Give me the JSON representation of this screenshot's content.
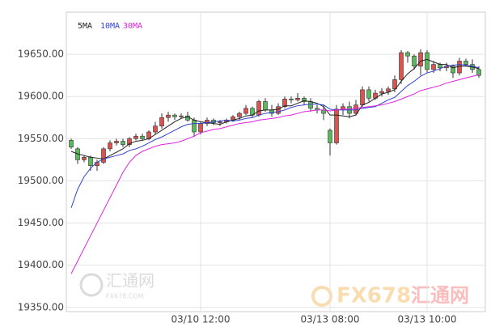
{
  "chart_data": {
    "type": "candlestick",
    "categories": [
      null,
      null,
      null,
      null,
      null,
      null,
      null,
      null,
      null,
      null,
      null,
      null,
      null,
      null,
      null,
      null,
      null,
      null,
      null,
      null,
      "03/10 12:00",
      null,
      null,
      null,
      null,
      null,
      null,
      null,
      null,
      null,
      null,
      null,
      null,
      null,
      null,
      null,
      null,
      null,
      null,
      null,
      "03/13 08:00",
      null,
      null,
      null,
      null,
      null,
      null,
      null,
      null,
      null,
      null,
      null,
      null,
      null,
      null,
      "03/13 10:00",
      null,
      null,
      null,
      null,
      null,
      null,
      null,
      null
    ],
    "open": [
      19548,
      19538,
      19525,
      19528,
      19518,
      19522,
      19538,
      19545,
      19547,
      19543,
      19550,
      19553,
      19550,
      19558,
      19565,
      19575,
      19578,
      19576,
      19577,
      19572,
      19558,
      19568,
      19572,
      19569,
      19570,
      19572,
      19576,
      19580,
      19586,
      19578,
      19594,
      19584,
      19580,
      19588,
      19597,
      19596,
      19598,
      19594,
      19586,
      19584,
      19560,
      19545,
      19585,
      19588,
      19580,
      19590,
      19608,
      19598,
      19604,
      19606,
      19609,
      19620,
      19652,
      19648,
      19636,
      19652,
      19632,
      19638,
      19634,
      19636,
      19628,
      19642,
      19638,
      19632
    ],
    "high": [
      19550,
      19540,
      19530,
      19530,
      19525,
      19540,
      19548,
      19550,
      19550,
      19552,
      19556,
      19556,
      19560,
      19570,
      19580,
      19582,
      19580,
      19580,
      19582,
      19575,
      19570,
      19575,
      19574,
      19572,
      19574,
      19578,
      19582,
      19590,
      19588,
      19596,
      19598,
      19590,
      19592,
      19600,
      19600,
      19604,
      19600,
      19598,
      19590,
      19590,
      19562,
      19590,
      19592,
      19594,
      19596,
      19612,
      19612,
      19608,
      19610,
      19612,
      19625,
      19655,
      19654,
      19650,
      19656,
      19655,
      19642,
      19640,
      19640,
      19638,
      19646,
      19645,
      19644,
      19636
    ],
    "low": [
      19538,
      19520,
      19522,
      19512,
      19512,
      19520,
      19535,
      19542,
      19540,
      19540,
      19548,
      19548,
      19548,
      19555,
      19562,
      19570,
      19572,
      19574,
      19570,
      19552,
      19555,
      19565,
      19566,
      19565,
      19568,
      19570,
      19572,
      19578,
      19575,
      19576,
      19582,
      19576,
      19578,
      19586,
      19592,
      19594,
      19590,
      19582,
      19580,
      19572,
      19530,
      19543,
      19578,
      19574,
      19578,
      19588,
      19594,
      19596,
      19600,
      19602,
      19605,
      19615,
      19640,
      19632,
      19625,
      19628,
      19628,
      19630,
      19630,
      19622,
      19625,
      19636,
      19628,
      19622
    ],
    "close": [
      19540,
      19525,
      19528,
      19518,
      19522,
      19538,
      19545,
      19547,
      19543,
      19550,
      19553,
      19550,
      19558,
      19565,
      19575,
      19578,
      19576,
      19577,
      19572,
      19558,
      19568,
      19572,
      19569,
      19570,
      19572,
      19576,
      19580,
      19586,
      19578,
      19594,
      19584,
      19580,
      19588,
      19597,
      19596,
      19598,
      19594,
      19586,
      19584,
      19580,
      19545,
      19585,
      19588,
      19580,
      19590,
      19608,
      19598,
      19604,
      19606,
      19609,
      19620,
      19652,
      19648,
      19636,
      19652,
      19632,
      19638,
      19634,
      19636,
      19628,
      19642,
      19638,
      19632,
      19625
    ],
    "up_color": "#d9534f",
    "down_color": "#5cb85c",
    "lines": [
      {
        "name": "5MA",
        "color": "#222222",
        "values": [
          19535,
          19532,
          19530,
          19528,
          19527,
          19526,
          19530,
          19534,
          19538,
          19544,
          19547,
          19548,
          19550,
          19555,
          19560,
          19565,
          19570,
          19574,
          19576,
          19572,
          19570,
          19569,
          19568,
          19567,
          19570,
          19572,
          19574,
          19577,
          19578,
          19583,
          19584,
          19584,
          19585,
          19589,
          19589,
          19592,
          19595,
          19594,
          19592,
          19588,
          19578,
          19578,
          19577,
          19576,
          19578,
          19590,
          19593,
          19598,
          19603,
          19605,
          19608,
          19618,
          19627,
          19633,
          19642,
          19644,
          19641,
          19638,
          19638,
          19634,
          19636,
          19636,
          19635,
          19633
        ]
      },
      {
        "name": "10MA",
        "color": "#3344cc",
        "values": [
          19468,
          19490,
          19505,
          19515,
          19522,
          19526,
          19528,
          19530,
          19532,
          19536,
          19538,
          19541,
          19545,
          19549,
          19552,
          19556,
          19560,
          19564,
          19567,
          19568,
          19568,
          19569,
          19570,
          19571,
          19572,
          19571,
          19572,
          19574,
          19575,
          19578,
          19580,
          19581,
          19582,
          19584,
          19587,
          19589,
          19590,
          19591,
          19591,
          19590,
          19585,
          19584,
          19584,
          19584,
          19584,
          19586,
          19587,
          19588,
          19592,
          19596,
          19599,
          19606,
          19613,
          19618,
          19624,
          19628,
          19630,
          19633,
          19636,
          19637,
          19638,
          19637,
          19636,
          19634
        ]
      },
      {
        "name": "30MA",
        "color": "#dd22dd",
        "values": [
          19390,
          19405,
          19420,
          19435,
          19450,
          19465,
          19480,
          19495,
          19510,
          19522,
          19530,
          19535,
          19538,
          19541,
          19543,
          19544,
          19545,
          19547,
          19550,
          19553,
          19557,
          19559,
          19561,
          19562,
          19564,
          19566,
          19568,
          19569,
          19570,
          19572,
          19573,
          19574,
          19575,
          19577,
          19578,
          19580,
          19582,
          19583,
          19584,
          19584,
          19583,
          19584,
          19585,
          19585,
          19586,
          19587,
          19588,
          19589,
          19590,
          19592,
          19594,
          19597,
          19600,
          19603,
          19607,
          19609,
          19611,
          19613,
          19616,
          19618,
          19620,
          19622,
          19624,
          19626
        ]
      }
    ],
    "ylim": [
      19345,
      19700
    ],
    "yticks": [
      {
        "value": 19350,
        "label": "19350.00"
      },
      {
        "value": 19400,
        "label": "19400.00"
      },
      {
        "value": 19450,
        "label": "19450.00"
      },
      {
        "value": 19500,
        "label": "19500.00"
      },
      {
        "value": 19550,
        "label": "19550.00"
      },
      {
        "value": 19600,
        "label": "19600.00"
      },
      {
        "value": 19650,
        "label": "19650.00"
      }
    ],
    "grid": true,
    "watermarks": [
      "汇通网",
      "FX678.COM",
      "FX678",
      "汇通网"
    ]
  }
}
